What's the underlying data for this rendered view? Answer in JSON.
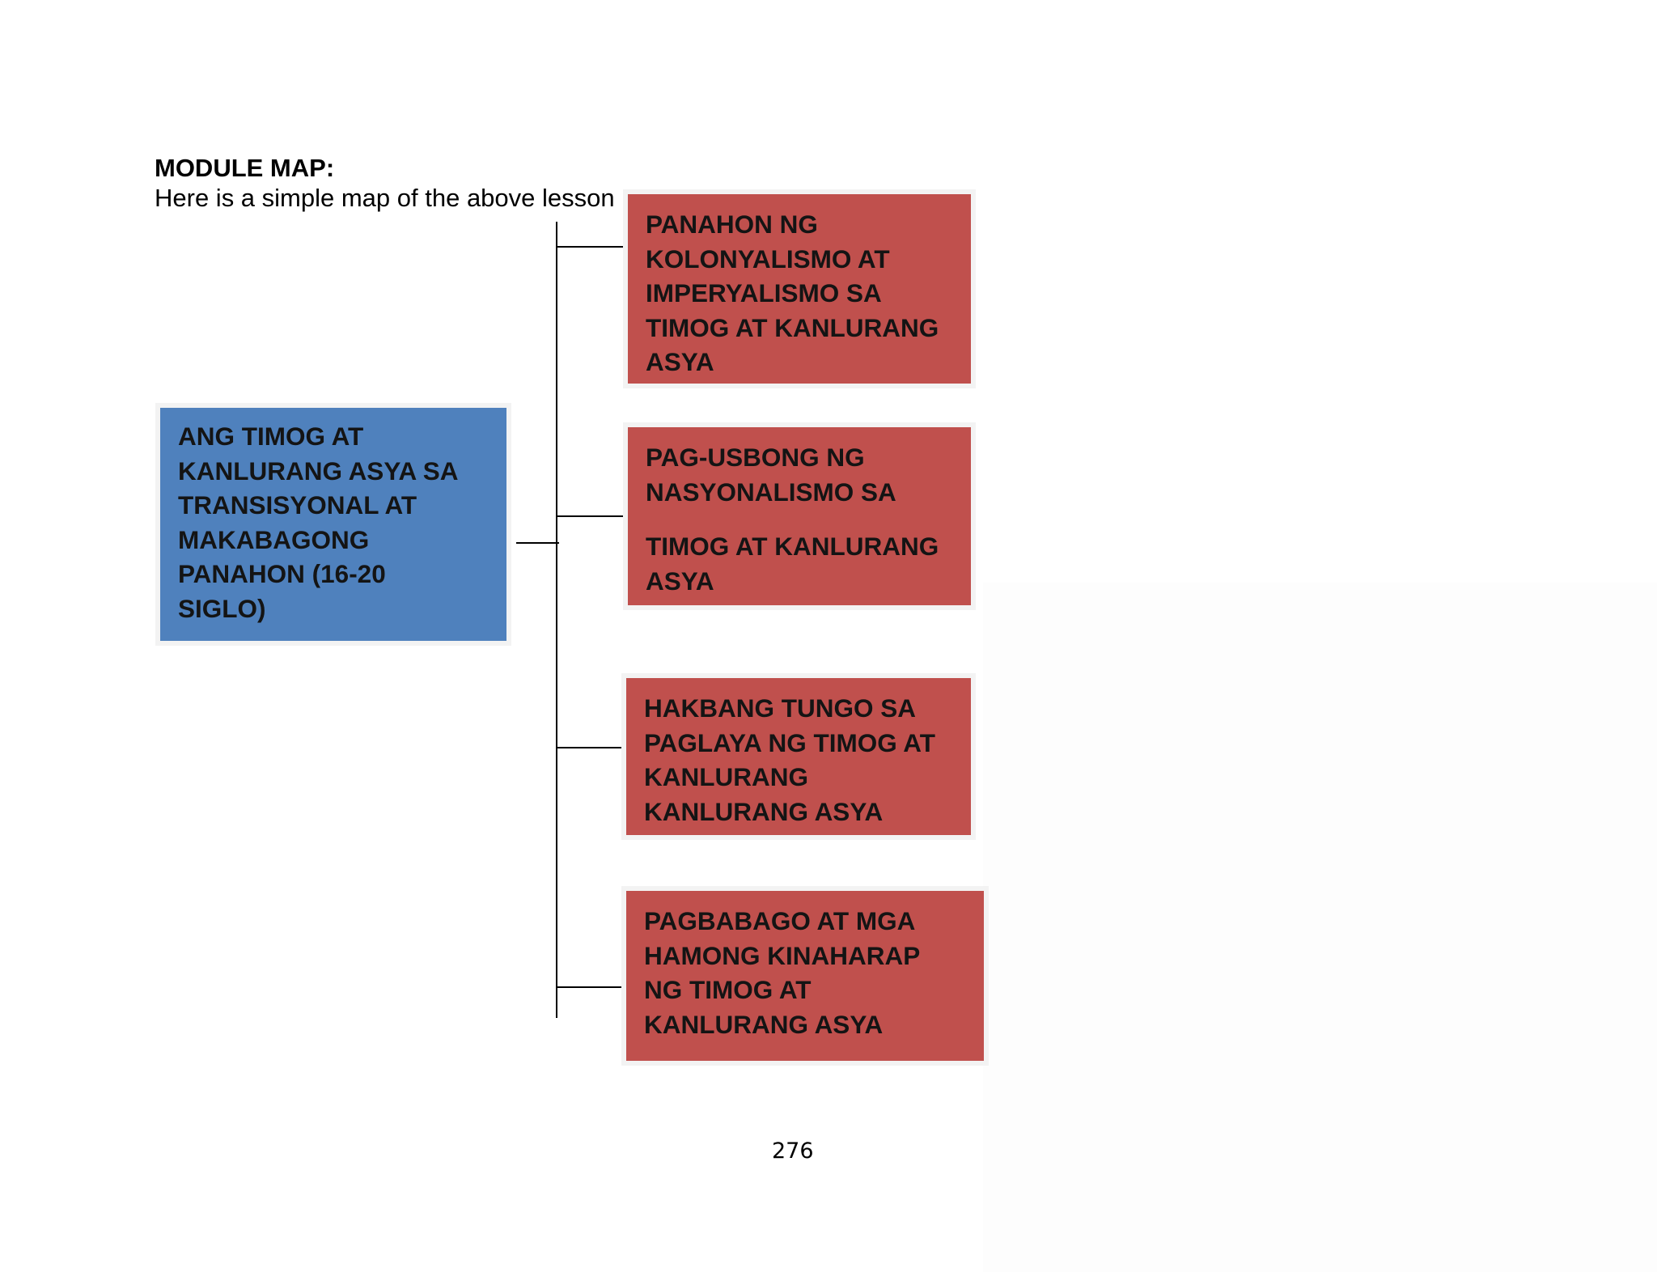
{
  "heading": "MODULE MAP:",
  "subheading": "Here is a simple map of the above lesson",
  "main_topic": {
    "lines": [
      "ANG TIMOG AT",
      "KANLURANG ASYA  SA",
      "TRANSISYONAL AT",
      "MAKABAGONG",
      "PANAHON (16-20",
      "SIGLO)"
    ]
  },
  "subtopics": [
    {
      "lines": [
        "PANAHON NG",
        "KOLONYALISMO AT",
        "IMPERYALISMO SA",
        "TIMOG AT KANLURANG",
        "ASYA"
      ]
    },
    {
      "lines_part1": [
        "PAG-USBONG NG",
        "NASYONALISMO SA"
      ],
      "lines_part2": [
        "TIMOG AT KANLURANG",
        "ASYA"
      ]
    },
    {
      "lines": [
        "HAKBANG TUNGO SA",
        "PAGLAYA NG TIMOG AT",
        "KANLURANG",
        "KANLURANG ASYA"
      ]
    },
    {
      "lines": [
        "PAGBABAGO AT MGA",
        "HAMONG KINAHARAP",
        "NG TIMOG AT",
        "KANLURANG ASYA"
      ]
    }
  ],
  "colors": {
    "main_box": "#4f81bd",
    "sub_box": "#c0504d",
    "box_border": "#f3f3f3",
    "connector": "#000000"
  },
  "page_number": "276"
}
